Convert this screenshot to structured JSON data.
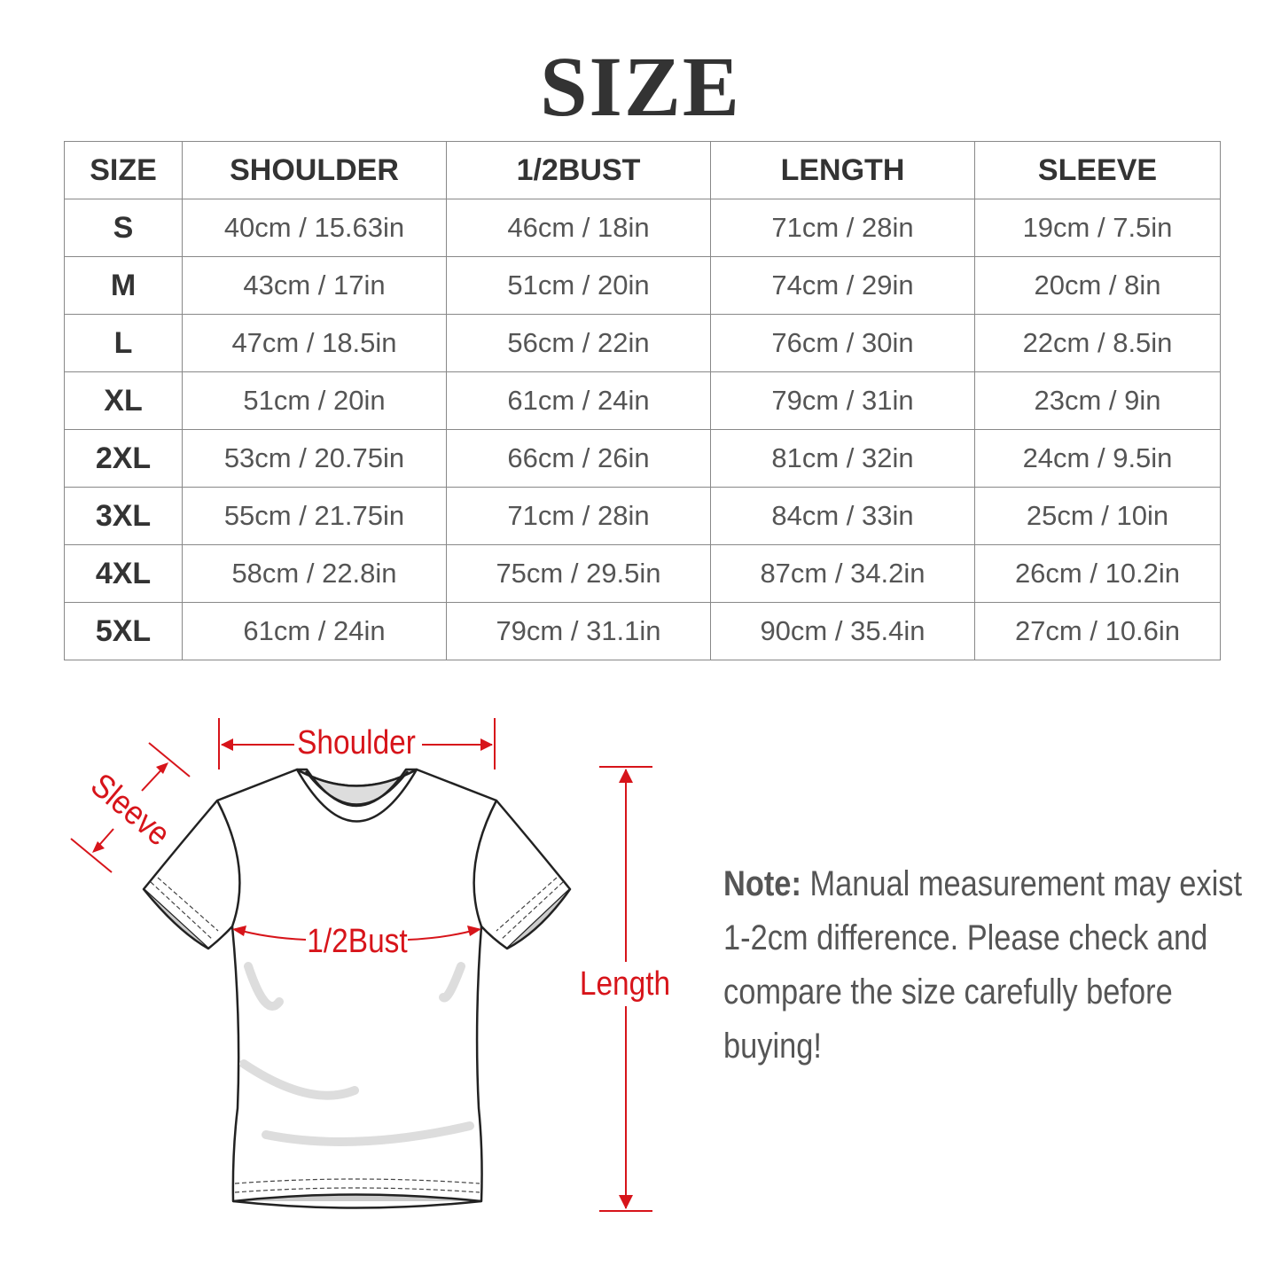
{
  "title": "SIZE",
  "table": {
    "headers": [
      "SIZE",
      "SHOULDER",
      "1/2BUST",
      "LENGTH",
      "SLEEVE"
    ],
    "rows": [
      [
        "S",
        "40cm / 15.63in",
        "46cm / 18in",
        "71cm / 28in",
        "19cm / 7.5in"
      ],
      [
        "M",
        "43cm / 17in",
        "51cm / 20in",
        "74cm / 29in",
        "20cm / 8in"
      ],
      [
        "L",
        "47cm / 18.5in",
        "56cm / 22in",
        "76cm / 30in",
        "22cm / 8.5in"
      ],
      [
        "XL",
        "51cm / 20in",
        "61cm / 24in",
        "79cm / 31in",
        "23cm / 9in"
      ],
      [
        "2XL",
        "53cm / 20.75in",
        "66cm / 26in",
        "81cm / 32in",
        "24cm / 9.5in"
      ],
      [
        "3XL",
        "55cm / 21.75in",
        "71cm / 28in",
        "84cm / 33in",
        "25cm / 10in"
      ],
      [
        "4XL",
        "58cm / 22.8in",
        "75cm / 29.5in",
        "87cm / 34.2in",
        "26cm / 10.2in"
      ],
      [
        "5XL",
        "61cm / 24in",
        "79cm / 31.1in",
        "90cm / 35.4in",
        "27cm / 10.6in"
      ]
    ]
  },
  "diagram": {
    "shoulder": "Shoulder",
    "sleeve": "Sleeve",
    "bust": "1/2Bust",
    "length": "Length",
    "accent_color": "#d7141a"
  },
  "note": {
    "label": "Note:",
    "text": "Manual measurement may exist 1-2cm difference. Please check and compare the size carefully before buying!"
  }
}
